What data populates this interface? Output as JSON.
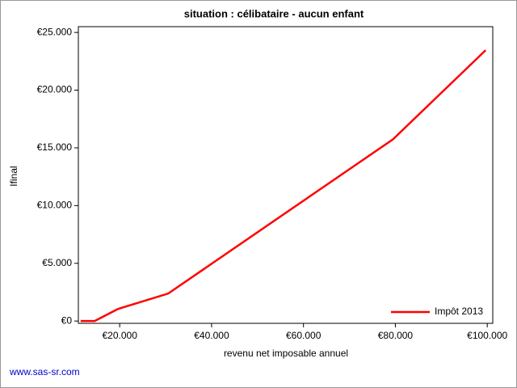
{
  "chart_data": {
    "type": "line",
    "title": "situation : célibataire - aucun enfant",
    "x_label": "revenu net imposable annuel",
    "y_label": "Ifinal",
    "footer": "www.sas-sr.com",
    "x": [
      11500,
      14550,
      19650,
      30550,
      79500,
      99650
    ],
    "series": [
      {
        "name": "Impôt 2013",
        "color": "#ff0000",
        "values": [
          0,
          0,
          1050,
          2380,
          15750,
          23460
        ]
      }
    ],
    "xlim": [
      11000,
      101200
    ],
    "ylim": [
      -200,
      25500
    ],
    "xticks": [
      {
        "value": 20000,
        "label": "€20.000"
      },
      {
        "value": 40000,
        "label": "€40.000"
      },
      {
        "value": 60000,
        "label": "€60.000"
      },
      {
        "value": 80000,
        "label": "€80.000"
      },
      {
        "value": 100000,
        "label": "€100.000"
      }
    ],
    "yticks": [
      {
        "value": 0,
        "label": "€0"
      },
      {
        "value": 5000,
        "label": "€5.000"
      },
      {
        "value": 10000,
        "label": "€10.000"
      },
      {
        "value": 15000,
        "label": "€15.000"
      },
      {
        "value": 20000,
        "label": "€20.000"
      },
      {
        "value": 25000,
        "label": "€25.000"
      }
    ],
    "legend": "bottom-right"
  }
}
